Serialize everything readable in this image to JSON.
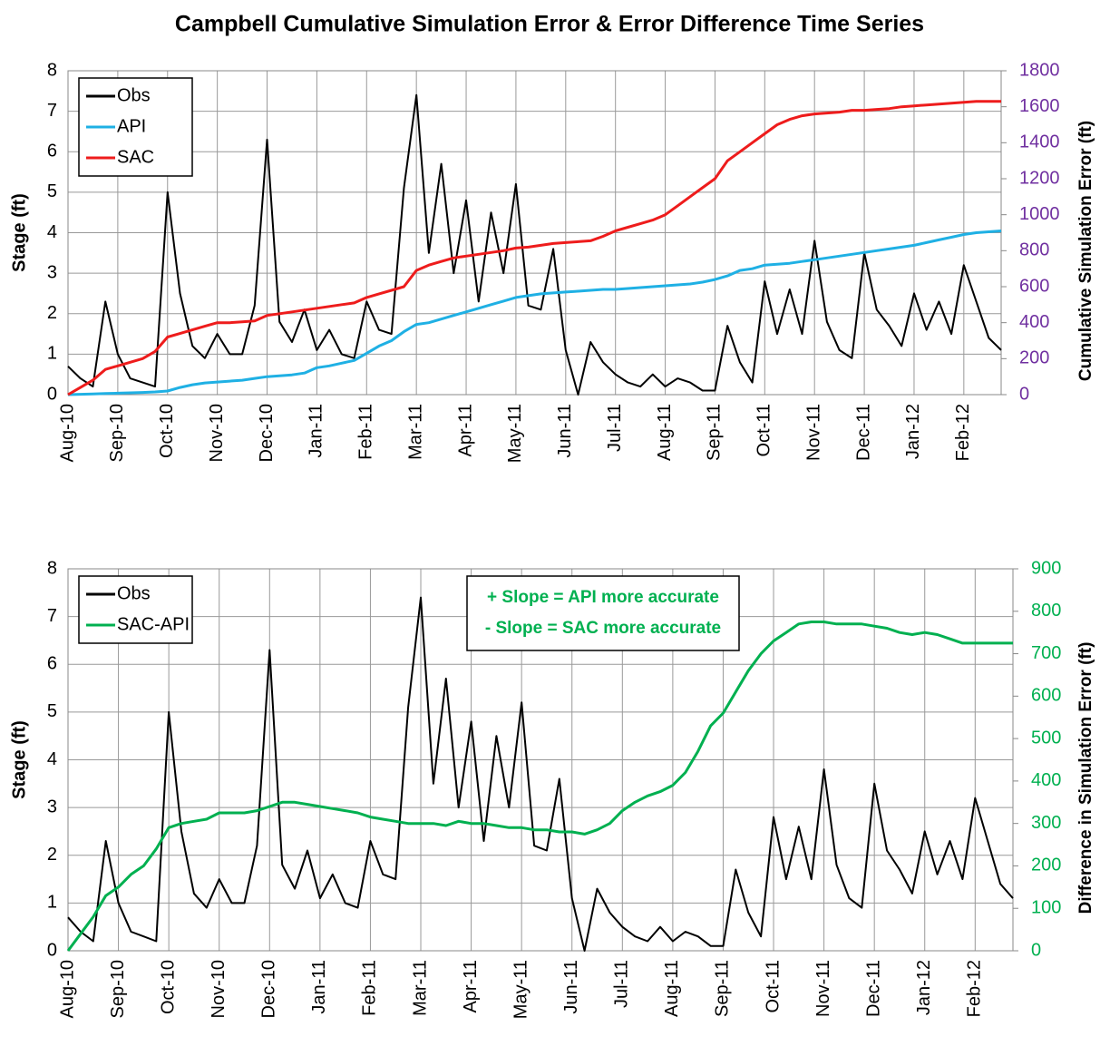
{
  "title": "Campbell Cumulative Simulation Error & Error Difference Time Series",
  "chart_data": [
    {
      "type": "line",
      "ylabel": "Stage (ft)",
      "y2label": "Cumulative Simulation Error (ft)",
      "y2tick_color": "#7030a0",
      "ylim": [
        0,
        8
      ],
      "yticks": [
        0,
        1,
        2,
        3,
        4,
        5,
        6,
        7,
        8
      ],
      "y2lim": [
        0,
        1800
      ],
      "y2ticks": [
        0,
        200,
        400,
        600,
        800,
        1000,
        1200,
        1400,
        1600,
        1800
      ],
      "grid": true,
      "legend": "upper left",
      "categories": [
        "Aug-10",
        null,
        null,
        null,
        "Sep-10",
        null,
        null,
        null,
        "Oct-10",
        null,
        null,
        null,
        "Nov-10",
        null,
        null,
        null,
        "Dec-10",
        null,
        null,
        null,
        "Jan-11",
        null,
        null,
        null,
        "Feb-11",
        null,
        null,
        null,
        "Mar-11",
        null,
        null,
        null,
        "Apr-11",
        null,
        null,
        null,
        "May-11",
        null,
        null,
        null,
        "Jun-11",
        null,
        null,
        null,
        "Jul-11",
        null,
        null,
        null,
        "Aug-11",
        null,
        null,
        null,
        "Sep-11",
        null,
        null,
        null,
        "Oct-11",
        null,
        null,
        null,
        "Nov-11",
        null,
        null,
        null,
        "Dec-11",
        null,
        null,
        null,
        "Jan-12",
        null,
        null,
        null,
        "Feb-12",
        null,
        null,
        null
      ],
      "series": [
        {
          "name": "Obs",
          "color": "#000000",
          "values": [
            0.7,
            0.4,
            0.2,
            2.3,
            1.0,
            0.4,
            0.3,
            0.2,
            5.0,
            2.5,
            1.2,
            0.9,
            1.5,
            1.0,
            1.0,
            2.2,
            6.3,
            1.8,
            1.3,
            2.1,
            1.1,
            1.6,
            1.0,
            0.9,
            2.3,
            1.6,
            1.5,
            5.1,
            7.4,
            3.5,
            5.7,
            3.0,
            4.8,
            2.3,
            4.5,
            3.0,
            5.2,
            2.2,
            2.1,
            3.6,
            1.1,
            0.0,
            1.3,
            0.8,
            0.5,
            0.3,
            0.2,
            0.5,
            0.2,
            0.4,
            0.3,
            0.1,
            0.1,
            1.7,
            0.8,
            0.3,
            2.8,
            1.5,
            2.6,
            1.5,
            3.8,
            1.8,
            1.1,
            0.9,
            3.5,
            2.1,
            1.7,
            1.2,
            2.5,
            1.6,
            2.3,
            1.5,
            3.2,
            2.3,
            1.4,
            1.1
          ]
        },
        {
          "name": "API",
          "color": "#1fb0e4",
          "axis": "y2",
          "values": [
            0,
            2,
            4,
            6,
            8,
            10,
            12,
            15,
            20,
            40,
            55,
            65,
            70,
            75,
            80,
            90,
            100,
            105,
            110,
            120,
            150,
            160,
            175,
            190,
            230,
            270,
            300,
            350,
            390,
            400,
            420,
            440,
            460,
            480,
            500,
            520,
            540,
            550,
            560,
            565,
            570,
            575,
            580,
            585,
            585,
            590,
            595,
            600,
            605,
            610,
            615,
            625,
            640,
            660,
            690,
            700,
            720,
            725,
            730,
            740,
            750,
            760,
            770,
            780,
            790,
            800,
            810,
            820,
            830,
            845,
            860,
            875,
            890,
            900,
            905,
            910
          ]
        },
        {
          "name": "SAC",
          "color": "#ee1c1c",
          "axis": "y2",
          "values": [
            0,
            40,
            80,
            140,
            160,
            180,
            200,
            240,
            320,
            340,
            360,
            380,
            400,
            400,
            405,
            410,
            440,
            450,
            460,
            470,
            480,
            490,
            500,
            510,
            540,
            560,
            580,
            600,
            690,
            720,
            740,
            760,
            770,
            780,
            790,
            800,
            815,
            820,
            830,
            840,
            845,
            850,
            855,
            880,
            910,
            930,
            950,
            970,
            1000,
            1050,
            1100,
            1150,
            1200,
            1300,
            1350,
            1400,
            1450,
            1500,
            1530,
            1550,
            1560,
            1565,
            1570,
            1580,
            1580,
            1585,
            1590,
            1600,
            1605,
            1610,
            1615,
            1620,
            1625,
            1630,
            1630,
            1630
          ]
        }
      ]
    },
    {
      "type": "line",
      "ylabel": "Stage (ft)",
      "y2label": "Difference in Simulation Error (ft)",
      "y2tick_color": "#00b050",
      "ylim": [
        0,
        8
      ],
      "yticks": [
        0,
        1,
        2,
        3,
        4,
        5,
        6,
        7,
        8
      ],
      "y2lim": [
        0,
        900
      ],
      "y2ticks": [
        0,
        100,
        200,
        300,
        400,
        500,
        600,
        700,
        800,
        900
      ],
      "grid": true,
      "legend": "upper left",
      "annotations": [
        "+ Slope = API more accurate",
        "- Slope = SAC more accurate"
      ],
      "annotation_color": "#00b050",
      "categories": [
        "Aug-10",
        null,
        null,
        null,
        "Sep-10",
        null,
        null,
        null,
        "Oct-10",
        null,
        null,
        null,
        "Nov-10",
        null,
        null,
        null,
        "Dec-10",
        null,
        null,
        null,
        "Jan-11",
        null,
        null,
        null,
        "Feb-11",
        null,
        null,
        null,
        "Mar-11",
        null,
        null,
        null,
        "Apr-11",
        null,
        null,
        null,
        "May-11",
        null,
        null,
        null,
        "Jun-11",
        null,
        null,
        null,
        "Jul-11",
        null,
        null,
        null,
        "Aug-11",
        null,
        null,
        null,
        "Sep-11",
        null,
        null,
        null,
        "Oct-11",
        null,
        null,
        null,
        "Nov-11",
        null,
        null,
        null,
        "Dec-11",
        null,
        null,
        null,
        "Jan-12",
        null,
        null,
        null,
        "Feb-12",
        null,
        null,
        null
      ],
      "series": [
        {
          "name": "Obs",
          "color": "#000000",
          "values": [
            0.7,
            0.4,
            0.2,
            2.3,
            1.0,
            0.4,
            0.3,
            0.2,
            5.0,
            2.5,
            1.2,
            0.9,
            1.5,
            1.0,
            1.0,
            2.2,
            6.3,
            1.8,
            1.3,
            2.1,
            1.1,
            1.6,
            1.0,
            0.9,
            2.3,
            1.6,
            1.5,
            5.1,
            7.4,
            3.5,
            5.7,
            3.0,
            4.8,
            2.3,
            4.5,
            3.0,
            5.2,
            2.2,
            2.1,
            3.6,
            1.1,
            0.0,
            1.3,
            0.8,
            0.5,
            0.3,
            0.2,
            0.5,
            0.2,
            0.4,
            0.3,
            0.1,
            0.1,
            1.7,
            0.8,
            0.3,
            2.8,
            1.5,
            2.6,
            1.5,
            3.8,
            1.8,
            1.1,
            0.9,
            3.5,
            2.1,
            1.7,
            1.2,
            2.5,
            1.6,
            2.3,
            1.5,
            3.2,
            2.3,
            1.4,
            1.1
          ]
        },
        {
          "name": "SAC-API",
          "color": "#00b050",
          "axis": "y2",
          "values": [
            0,
            40,
            80,
            130,
            150,
            180,
            200,
            240,
            290,
            300,
            305,
            310,
            325,
            325,
            325,
            330,
            340,
            350,
            350,
            345,
            340,
            335,
            330,
            325,
            315,
            310,
            305,
            300,
            300,
            300,
            295,
            305,
            300,
            300,
            295,
            290,
            290,
            285,
            285,
            280,
            280,
            275,
            285,
            300,
            330,
            350,
            365,
            375,
            390,
            420,
            470,
            530,
            560,
            610,
            660,
            700,
            730,
            750,
            770,
            775,
            775,
            770,
            770,
            770,
            765,
            760,
            750,
            745,
            750,
            745,
            735,
            725,
            725,
            725,
            725,
            725
          ]
        }
      ]
    }
  ]
}
